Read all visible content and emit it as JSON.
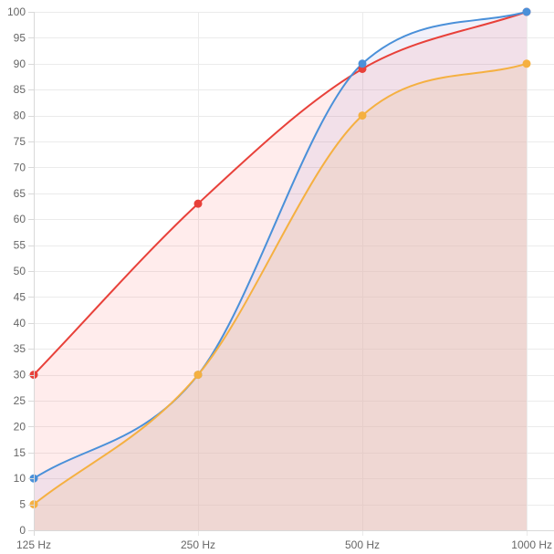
{
  "chart_data": {
    "type": "area",
    "categories": [
      "125 Hz",
      "250 Hz",
      "500 Hz",
      "1000 Hz"
    ],
    "ylim": [
      0,
      100
    ],
    "ytick_step": 5,
    "grid": true,
    "legend": "none",
    "series": [
      {
        "values": [
          30,
          63,
          89,
          100
        ],
        "color": "#e8413a",
        "fill": "rgba(255, 99, 99, 0.12)"
      },
      {
        "values": [
          10,
          30,
          90,
          100
        ],
        "color": "#4a90d9",
        "fill": "rgba(150, 140, 210, 0.12)"
      },
      {
        "values": [
          5,
          30,
          80,
          90
        ],
        "color": "#f5b041",
        "fill": "rgba(235, 205, 185, 0.45)"
      }
    ]
  }
}
